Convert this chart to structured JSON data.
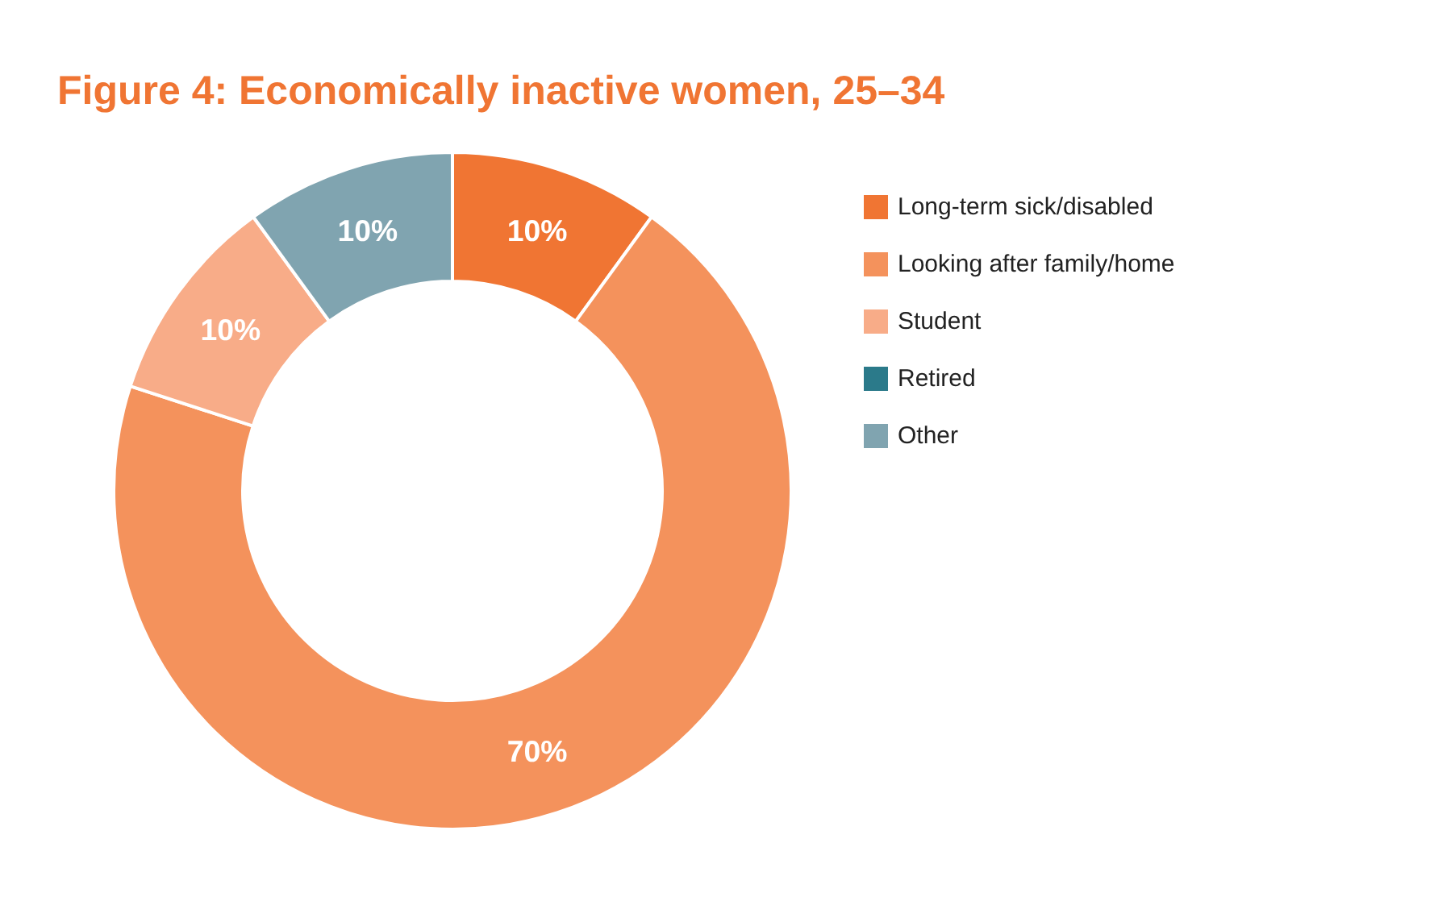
{
  "chart_data": {
    "type": "donut",
    "title": "Figure 4: Economically inactive women, 25–34",
    "categories": [
      "Long-term sick/disabled",
      "Looking after family/home",
      "Student",
      "Retired",
      "Other"
    ],
    "values": [
      10,
      70,
      10,
      0,
      10
    ],
    "colors": [
      "#f07533",
      "#f4925c",
      "#f8ac88",
      "#2b7a8a",
      "#80a4b0"
    ],
    "value_labels": [
      "10%",
      "70%",
      "10%",
      null,
      "10%"
    ],
    "legend": "right"
  }
}
